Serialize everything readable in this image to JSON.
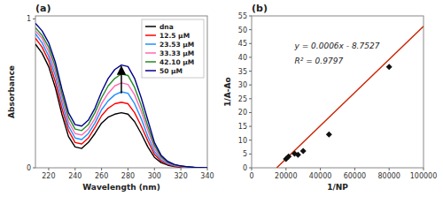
{
  "chart_data": [
    {
      "type": "line",
      "title": "(a)",
      "xlabel": "Wavelength (nm)",
      "ylabel": "Absorbance",
      "x": [
        210,
        215,
        220,
        225,
        230,
        235,
        240,
        245,
        250,
        255,
        260,
        265,
        270,
        275,
        280,
        285,
        290,
        295,
        300,
        305,
        310,
        315,
        320,
        325,
        330,
        335,
        340
      ],
      "series": [
        {
          "name": "dna",
          "color": "#000000",
          "values": [
            0.83,
            0.77,
            0.68,
            0.54,
            0.36,
            0.21,
            0.14,
            0.13,
            0.17,
            0.23,
            0.3,
            0.34,
            0.36,
            0.37,
            0.36,
            0.31,
            0.23,
            0.14,
            0.07,
            0.035,
            0.018,
            0.009,
            0.004,
            0.002,
            0.001,
            0.0005,
            0.0
          ]
        },
        {
          "name": "12.5 μM",
          "color": "#ff0000",
          "values": [
            0.87,
            0.81,
            0.72,
            0.58,
            0.4,
            0.25,
            0.17,
            0.16,
            0.2,
            0.27,
            0.35,
            0.4,
            0.43,
            0.44,
            0.43,
            0.37,
            0.28,
            0.18,
            0.09,
            0.045,
            0.023,
            0.012,
            0.006,
            0.003,
            0.001,
            0.0005,
            0.0
          ]
        },
        {
          "name": "23.53 μM",
          "color": "#1e90ff",
          "values": [
            0.9,
            0.84,
            0.75,
            0.62,
            0.44,
            0.28,
            0.2,
            0.19,
            0.23,
            0.3,
            0.39,
            0.45,
            0.49,
            0.51,
            0.5,
            0.43,
            0.33,
            0.21,
            0.11,
            0.055,
            0.028,
            0.015,
            0.008,
            0.004,
            0.002,
            0.001,
            0.0
          ]
        },
        {
          "name": "33.33 μM",
          "color": "#ff69b4",
          "values": [
            0.92,
            0.87,
            0.78,
            0.65,
            0.47,
            0.31,
            0.23,
            0.22,
            0.26,
            0.33,
            0.43,
            0.5,
            0.55,
            0.57,
            0.56,
            0.49,
            0.38,
            0.25,
            0.13,
            0.065,
            0.033,
            0.017,
            0.009,
            0.005,
            0.002,
            0.001,
            0.0
          ]
        },
        {
          "name": "42.10 μM",
          "color": "#228b22",
          "values": [
            0.94,
            0.89,
            0.81,
            0.68,
            0.5,
            0.34,
            0.26,
            0.25,
            0.29,
            0.37,
            0.47,
            0.55,
            0.6,
            0.63,
            0.62,
            0.54,
            0.42,
            0.28,
            0.15,
            0.075,
            0.038,
            0.02,
            0.011,
            0.006,
            0.003,
            0.001,
            0.0
          ]
        },
        {
          "name": "50 μM",
          "color": "#00008b",
          "values": [
            0.97,
            0.92,
            0.84,
            0.71,
            0.53,
            0.37,
            0.29,
            0.28,
            0.32,
            0.4,
            0.51,
            0.6,
            0.66,
            0.69,
            0.68,
            0.6,
            0.47,
            0.32,
            0.17,
            0.085,
            0.043,
            0.023,
            0.013,
            0.007,
            0.003,
            0.002,
            0.0
          ]
        }
      ],
      "xlim": [
        210,
        340
      ],
      "ylim": [
        0,
        1.02
      ],
      "xticks": [
        220,
        240,
        260,
        280,
        300,
        320,
        340
      ],
      "yticks": [
        0,
        1
      ],
      "legend": "upper right",
      "arrows": [
        {
          "x": 275,
          "y_start": 0.5,
          "y_end": 0.68
        }
      ]
    },
    {
      "type": "scatter",
      "title": "(b)",
      "xlabel": "1/NP",
      "ylabel": "1/A-Ao",
      "series": [
        {
          "type": "line",
          "color": "#cc2200",
          "x": [
            14587.833333333334,
            100000
          ],
          "values": [
            0,
            51.2473
          ]
        },
        {
          "type": "scatter",
          "color": "#111111",
          "marker": "diamond",
          "x": [
            20000,
            21500,
            25000,
            27000,
            30000,
            45000,
            80000
          ],
          "values": [
            3.2,
            4.1,
            5.1,
            4.7,
            6.1,
            12.1,
            36.5
          ]
        }
      ],
      "xlim": [
        0,
        100000
      ],
      "ylim": [
        0,
        55
      ],
      "xticks": [
        0,
        20000,
        40000,
        60000,
        80000,
        100000
      ],
      "yticks": [
        0,
        5,
        10,
        15,
        20,
        25,
        30,
        35,
        40,
        45,
        50,
        55
      ],
      "annotations": [
        "y = 0.0006x - 8.7527",
        "R² = 0.9797"
      ]
    }
  ]
}
